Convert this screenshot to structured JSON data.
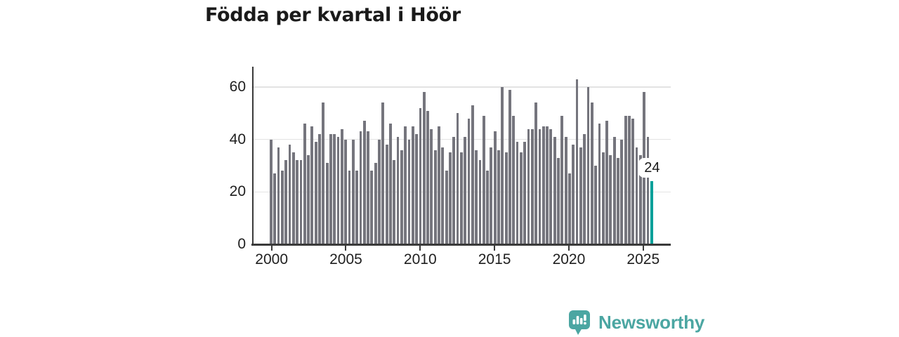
{
  "title": "Födda per kvartal i Höör",
  "chart_data": {
    "type": "bar",
    "title": "Födda per kvartal i Höör",
    "frequency": "quarterly",
    "x_start": "2000-Q1",
    "x_end": "2025-Q3",
    "xlabel": "",
    "ylabel": "",
    "ylim": [
      0,
      65
    ],
    "grid": "horizontal",
    "y_ticks": [
      0,
      20,
      40,
      60
    ],
    "x_ticks": [
      {
        "index": 0,
        "label": "2000"
      },
      {
        "index": 20,
        "label": "2005"
      },
      {
        "index": 40,
        "label": "2010"
      },
      {
        "index": 60,
        "label": "2015"
      },
      {
        "index": 80,
        "label": "2020"
      },
      {
        "index": 100,
        "label": "2025"
      }
    ],
    "values": [
      40,
      27,
      37,
      28,
      32,
      38,
      35,
      32,
      32,
      46,
      34,
      45,
      39,
      42,
      54,
      31,
      42,
      42,
      41,
      44,
      40,
      28,
      40,
      28,
      43,
      47,
      43,
      28,
      31,
      40,
      54,
      38,
      46,
      32,
      41,
      36,
      45,
      40,
      45,
      42,
      52,
      58,
      51,
      44,
      36,
      45,
      37,
      28,
      35,
      41,
      50,
      35,
      41,
      48,
      53,
      36,
      32,
      49,
      28,
      37,
      43,
      36,
      60,
      35,
      59,
      49,
      39,
      35,
      39,
      44,
      44,
      54,
      44,
      45,
      45,
      44,
      41,
      33,
      49,
      41,
      27,
      38,
      63,
      37,
      42,
      60,
      54,
      30,
      46,
      35,
      47,
      34,
      41,
      33,
      40,
      49,
      49,
      48,
      37,
      34,
      58,
      41,
      24
    ],
    "bar_color": "#75757d",
    "highlight": {
      "index": 102,
      "value": 24,
      "label": "24",
      "color": "#00a099"
    }
  },
  "branding": {
    "logo_text": "Newsworthy",
    "logo_color": "#4ba6a2",
    "logo_icon": "speech-bubble-bar-chart"
  }
}
